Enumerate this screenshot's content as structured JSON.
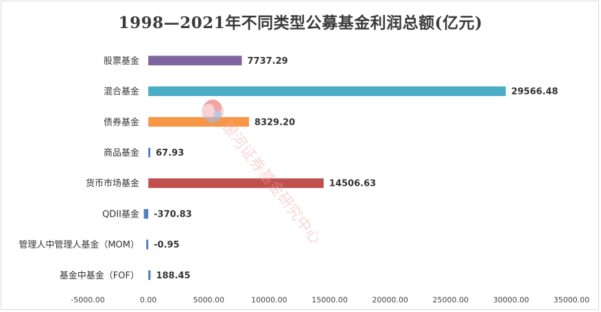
{
  "chart_data": {
    "type": "bar",
    "orientation": "horizontal",
    "title": "1998—2021年不同类型公募基金利润总额(亿元)",
    "categories": [
      "股票基金",
      "混合基金",
      "债券基金",
      "商品基金",
      "货币市场基金",
      "QDII基金",
      "管理人中管理人基金（MOM）",
      "基金中基金（FOF）"
    ],
    "values": [
      7737.29,
      29566.48,
      8329.2,
      67.93,
      14506.63,
      -370.83,
      -0.95,
      188.45
    ],
    "value_labels": [
      "7737.29",
      "29566.48",
      "8329.20",
      "67.93",
      "14506.63",
      "-370.83",
      "-0.95",
      "188.45"
    ],
    "colors": [
      "#8064a2",
      "#4bacc6",
      "#f79646",
      "#4f81bd",
      "#c0504d",
      "#4f81bd",
      "#4f81bd",
      "#4f81bd"
    ],
    "xlim": [
      -5000,
      35000
    ],
    "xticks": [
      -5000,
      0,
      5000,
      10000,
      15000,
      20000,
      25000,
      30000,
      35000
    ],
    "xtick_labels": [
      "-5000.00",
      "0.00",
      "5000.00",
      "10000.00",
      "15000.00",
      "20000.00",
      "25000.00",
      "30000.00",
      "35000.00"
    ],
    "grid": false,
    "legend": "none",
    "watermark": "银河证券基金研究中心",
    "watermark_icon": "logo-icon"
  }
}
